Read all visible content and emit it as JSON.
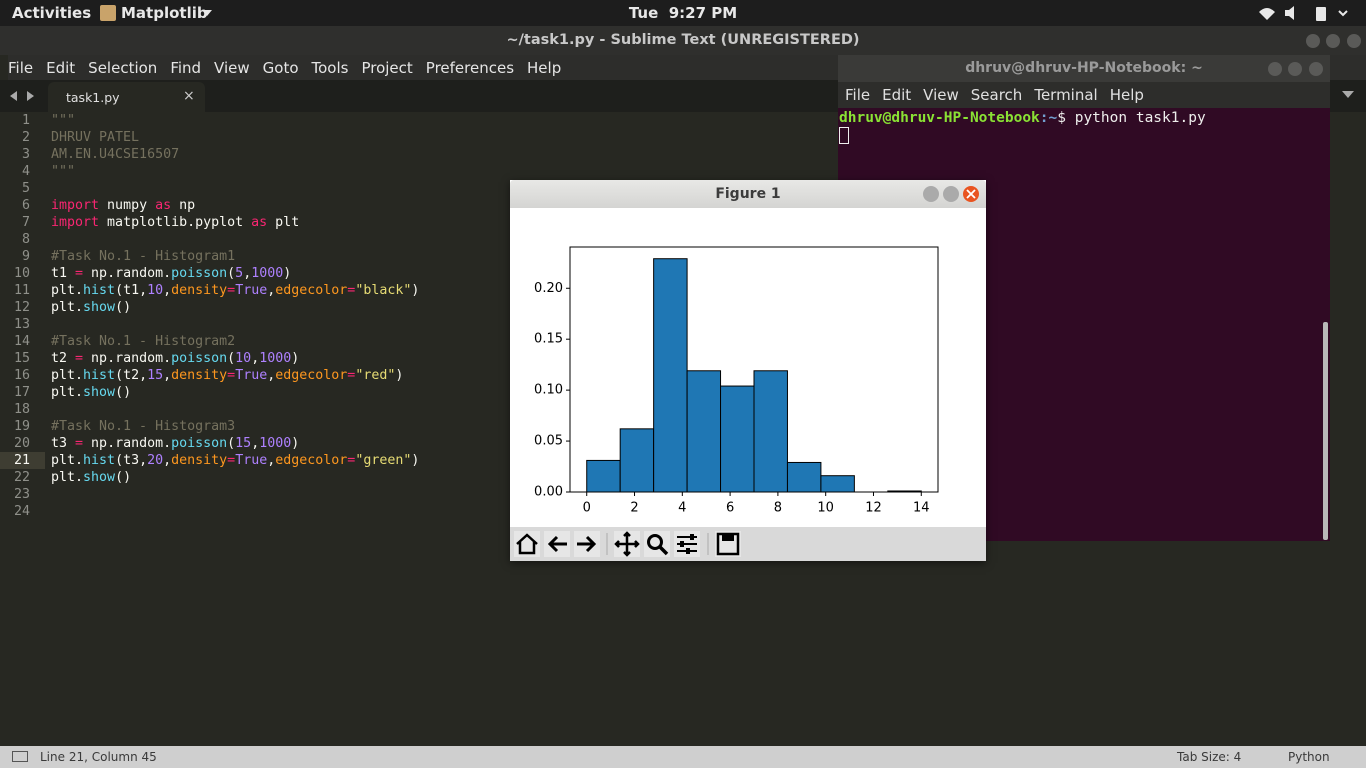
{
  "topbar": {
    "activities": "Activities",
    "app": "Matplotlib",
    "clock": "Tue  9:27 PM"
  },
  "editor": {
    "title": "~/task1.py - Sublime Text (UNREGISTERED)",
    "menu": [
      "File",
      "Edit",
      "Selection",
      "Find",
      "View",
      "Goto",
      "Tools",
      "Project",
      "Preferences",
      "Help"
    ],
    "tab": "task1.py",
    "current_line": 21,
    "line_numbers": [
      1,
      2,
      3,
      4,
      5,
      6,
      7,
      8,
      9,
      10,
      11,
      12,
      13,
      14,
      15,
      16,
      17,
      18,
      19,
      20,
      21,
      22,
      23,
      24
    ],
    "lines": [
      [
        {
          "text": "\"\"\"",
          "color": "#75715e"
        }
      ],
      [
        {
          "text": "DHRUV PATEL",
          "color": "#75715e"
        }
      ],
      [
        {
          "text": "AM.EN.U4CSE16507",
          "color": "#75715e"
        }
      ],
      [
        {
          "text": "\"\"\"",
          "color": "#75715e"
        }
      ],
      [],
      [
        {
          "text": "import",
          "color": "#f92672"
        },
        {
          "text": " numpy ",
          "color": "#f8f8f2"
        },
        {
          "text": "as",
          "color": "#f92672"
        },
        {
          "text": " np",
          "color": "#f8f8f2"
        }
      ],
      [
        {
          "text": "import",
          "color": "#f92672"
        },
        {
          "text": " matplotlib.pyplot ",
          "color": "#f8f8f2"
        },
        {
          "text": "as",
          "color": "#f92672"
        },
        {
          "text": " plt",
          "color": "#f8f8f2"
        }
      ],
      [],
      [
        {
          "text": "#Task No.1 - Histogram1",
          "color": "#75715e"
        }
      ],
      [
        {
          "text": "t1 ",
          "color": "#f8f8f2"
        },
        {
          "text": "=",
          "color": "#f92672"
        },
        {
          "text": " np.random.",
          "color": "#f8f8f2"
        },
        {
          "text": "poisson",
          "color": "#66d9ef"
        },
        {
          "text": "(",
          "color": "#f8f8f2"
        },
        {
          "text": "5",
          "color": "#ae81ff"
        },
        {
          "text": ",",
          "color": "#f8f8f2"
        },
        {
          "text": "1000",
          "color": "#ae81ff"
        },
        {
          "text": ")",
          "color": "#f8f8f2"
        }
      ],
      [
        {
          "text": "plt.",
          "color": "#f8f8f2"
        },
        {
          "text": "hist",
          "color": "#66d9ef"
        },
        {
          "text": "(t1,",
          "color": "#f8f8f2"
        },
        {
          "text": "10",
          "color": "#ae81ff"
        },
        {
          "text": ",",
          "color": "#f8f8f2"
        },
        {
          "text": "density",
          "color": "#fd971f"
        },
        {
          "text": "=",
          "color": "#f92672"
        },
        {
          "text": "True",
          "color": "#ae81ff"
        },
        {
          "text": ",",
          "color": "#f8f8f2"
        },
        {
          "text": "edgecolor",
          "color": "#fd971f"
        },
        {
          "text": "=",
          "color": "#f92672"
        },
        {
          "text": "\"black\"",
          "color": "#e6db74"
        },
        {
          "text": ")",
          "color": "#f8f8f2"
        }
      ],
      [
        {
          "text": "plt.",
          "color": "#f8f8f2"
        },
        {
          "text": "show",
          "color": "#66d9ef"
        },
        {
          "text": "()",
          "color": "#f8f8f2"
        }
      ],
      [],
      [
        {
          "text": "#Task No.1 - Histogram2",
          "color": "#75715e"
        }
      ],
      [
        {
          "text": "t2 ",
          "color": "#f8f8f2"
        },
        {
          "text": "=",
          "color": "#f92672"
        },
        {
          "text": " np.random.",
          "color": "#f8f8f2"
        },
        {
          "text": "poisson",
          "color": "#66d9ef"
        },
        {
          "text": "(",
          "color": "#f8f8f2"
        },
        {
          "text": "10",
          "color": "#ae81ff"
        },
        {
          "text": ",",
          "color": "#f8f8f2"
        },
        {
          "text": "1000",
          "color": "#ae81ff"
        },
        {
          "text": ")",
          "color": "#f8f8f2"
        }
      ],
      [
        {
          "text": "plt.",
          "color": "#f8f8f2"
        },
        {
          "text": "hist",
          "color": "#66d9ef"
        },
        {
          "text": "(t2,",
          "color": "#f8f8f2"
        },
        {
          "text": "15",
          "color": "#ae81ff"
        },
        {
          "text": ",",
          "color": "#f8f8f2"
        },
        {
          "text": "density",
          "color": "#fd971f"
        },
        {
          "text": "=",
          "color": "#f92672"
        },
        {
          "text": "True",
          "color": "#ae81ff"
        },
        {
          "text": ",",
          "color": "#f8f8f2"
        },
        {
          "text": "edgecolor",
          "color": "#fd971f"
        },
        {
          "text": "=",
          "color": "#f92672"
        },
        {
          "text": "\"red\"",
          "color": "#e6db74"
        },
        {
          "text": ")",
          "color": "#f8f8f2"
        }
      ],
      [
        {
          "text": "plt.",
          "color": "#f8f8f2"
        },
        {
          "text": "show",
          "color": "#66d9ef"
        },
        {
          "text": "()",
          "color": "#f8f8f2"
        }
      ],
      [],
      [
        {
          "text": "#Task No.1 - Histogram3",
          "color": "#75715e"
        }
      ],
      [
        {
          "text": "t3 ",
          "color": "#f8f8f2"
        },
        {
          "text": "=",
          "color": "#f92672"
        },
        {
          "text": " np.random.",
          "color": "#f8f8f2"
        },
        {
          "text": "poisson",
          "color": "#66d9ef"
        },
        {
          "text": "(",
          "color": "#f8f8f2"
        },
        {
          "text": "15",
          "color": "#ae81ff"
        },
        {
          "text": ",",
          "color": "#f8f8f2"
        },
        {
          "text": "1000",
          "color": "#ae81ff"
        },
        {
          "text": ")",
          "color": "#f8f8f2"
        }
      ],
      [
        {
          "text": "plt.",
          "color": "#f8f8f2"
        },
        {
          "text": "hist",
          "color": "#66d9ef"
        },
        {
          "text": "(t3,",
          "color": "#f8f8f2"
        },
        {
          "text": "20",
          "color": "#ae81ff"
        },
        {
          "text": ",",
          "color": "#f8f8f2"
        },
        {
          "text": "density",
          "color": "#fd971f"
        },
        {
          "text": "=",
          "color": "#f92672"
        },
        {
          "text": "True",
          "color": "#ae81ff"
        },
        {
          "text": ",",
          "color": "#f8f8f2"
        },
        {
          "text": "edgecolor",
          "color": "#fd971f"
        },
        {
          "text": "=",
          "color": "#f92672"
        },
        {
          "text": "\"green\"",
          "color": "#e6db74"
        },
        {
          "text": ")",
          "color": "#f8f8f2"
        }
      ],
      [
        {
          "text": "plt.",
          "color": "#f8f8f2"
        },
        {
          "text": "show",
          "color": "#66d9ef"
        },
        {
          "text": "()",
          "color": "#f8f8f2"
        }
      ],
      [],
      []
    ]
  },
  "terminal": {
    "title": "dhruv@dhruv-HP-Notebook: ~",
    "menu": [
      "File",
      "Edit",
      "View",
      "Search",
      "Terminal",
      "Help"
    ],
    "prompt_user": "dhruv@dhruv-HP-Notebook",
    "prompt_path": ":~",
    "command": "$ python task1.py"
  },
  "figure": {
    "title": "Figure 1"
  },
  "chart_data": {
    "type": "histogram",
    "bins": [
      0,
      1.4,
      2.8,
      4.2,
      5.6,
      7.0,
      8.4,
      9.8,
      11.2,
      12.6,
      14
    ],
    "values": [
      0.031,
      0.062,
      0.229,
      0.119,
      0.104,
      0.119,
      0.029,
      0.016,
      0,
      0.001
    ],
    "color": "#1f77b4",
    "edgecolor": "#000000",
    "xlim": [
      -0.7,
      14.7
    ],
    "ylim": [
      0,
      0.2405
    ],
    "xticks": [
      0,
      2,
      4,
      6,
      8,
      10,
      12,
      14
    ],
    "yticks": [
      {
        "value": 0,
        "label": "0.00"
      },
      {
        "value": 0.05,
        "label": "0.05"
      },
      {
        "value": 0.1,
        "label": "0.10"
      },
      {
        "value": 0.15,
        "label": "0.15"
      },
      {
        "value": 0.2,
        "label": "0.20"
      }
    ],
    "grid": false
  },
  "statusbar": {
    "position": "Line 21, Column 45",
    "tab_size": "Tab Size: 4",
    "syntax": "Python"
  }
}
